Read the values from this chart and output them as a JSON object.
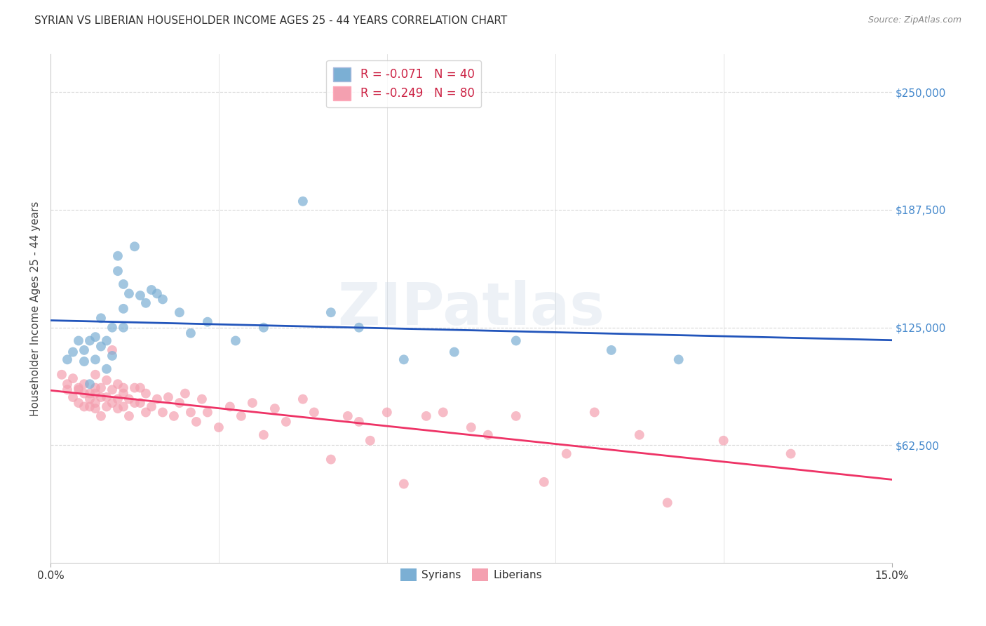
{
  "title": "SYRIAN VS LIBERIAN HOUSEHOLDER INCOME AGES 25 - 44 YEARS CORRELATION CHART",
  "source": "Source: ZipAtlas.com",
  "ylabel": "Householder Income Ages 25 - 44 years",
  "ytick_labels": [
    "$250,000",
    "$187,500",
    "$125,000",
    "$62,500"
  ],
  "ytick_values": [
    250000,
    187500,
    125000,
    62500
  ],
  "ylim": [
    0,
    270000
  ],
  "xlim": [
    0.0,
    0.15
  ],
  "background_color": "#ffffff",
  "grid_color": "#d8d8d8",
  "watermark": "ZIPatlas",
  "legend_syrian_r": "R = -0.071",
  "legend_syrian_n": "N = 40",
  "legend_liberian_r": "R = -0.249",
  "legend_liberian_n": "N = 80",
  "syrian_color": "#7bafd4",
  "liberian_color": "#f4a0b0",
  "syrian_line_color": "#2255bb",
  "liberian_line_color": "#ee3366",
  "marker_size": 100,
  "syrians_x": [
    0.003,
    0.004,
    0.005,
    0.006,
    0.006,
    0.007,
    0.007,
    0.008,
    0.008,
    0.009,
    0.009,
    0.01,
    0.01,
    0.011,
    0.011,
    0.012,
    0.012,
    0.013,
    0.013,
    0.013,
    0.014,
    0.015,
    0.016,
    0.017,
    0.018,
    0.019,
    0.02,
    0.023,
    0.025,
    0.028,
    0.033,
    0.038,
    0.045,
    0.05,
    0.055,
    0.063,
    0.072,
    0.083,
    0.1,
    0.112
  ],
  "syrians_y": [
    108000,
    112000,
    118000,
    107000,
    113000,
    95000,
    118000,
    120000,
    108000,
    115000,
    130000,
    103000,
    118000,
    125000,
    110000,
    155000,
    163000,
    148000,
    135000,
    125000,
    143000,
    168000,
    142000,
    138000,
    145000,
    143000,
    140000,
    133000,
    122000,
    128000,
    118000,
    125000,
    192000,
    133000,
    125000,
    108000,
    112000,
    118000,
    113000,
    108000
  ],
  "liberians_x": [
    0.002,
    0.003,
    0.003,
    0.004,
    0.004,
    0.005,
    0.005,
    0.005,
    0.006,
    0.006,
    0.006,
    0.007,
    0.007,
    0.007,
    0.008,
    0.008,
    0.008,
    0.008,
    0.008,
    0.009,
    0.009,
    0.009,
    0.01,
    0.01,
    0.01,
    0.011,
    0.011,
    0.011,
    0.012,
    0.012,
    0.012,
    0.013,
    0.013,
    0.013,
    0.014,
    0.014,
    0.015,
    0.015,
    0.016,
    0.016,
    0.017,
    0.017,
    0.018,
    0.019,
    0.02,
    0.021,
    0.022,
    0.023,
    0.024,
    0.025,
    0.026,
    0.027,
    0.028,
    0.03,
    0.032,
    0.034,
    0.036,
    0.038,
    0.04,
    0.042,
    0.045,
    0.047,
    0.05,
    0.053,
    0.055,
    0.057,
    0.06,
    0.063,
    0.067,
    0.07,
    0.075,
    0.078,
    0.083,
    0.088,
    0.092,
    0.097,
    0.105,
    0.11,
    0.12,
    0.132
  ],
  "liberians_y": [
    100000,
    95000,
    92000,
    98000,
    88000,
    93000,
    85000,
    92000,
    90000,
    83000,
    95000,
    90000,
    83000,
    87000,
    100000,
    93000,
    85000,
    90000,
    82000,
    88000,
    78000,
    93000,
    97000,
    88000,
    83000,
    92000,
    85000,
    113000,
    95000,
    87000,
    82000,
    90000,
    83000,
    93000,
    78000,
    87000,
    93000,
    85000,
    93000,
    85000,
    80000,
    90000,
    83000,
    87000,
    80000,
    88000,
    78000,
    85000,
    90000,
    80000,
    75000,
    87000,
    80000,
    72000,
    83000,
    78000,
    85000,
    68000,
    82000,
    75000,
    87000,
    80000,
    55000,
    78000,
    75000,
    65000,
    80000,
    42000,
    78000,
    80000,
    72000,
    68000,
    78000,
    43000,
    58000,
    80000,
    68000,
    32000,
    65000,
    58000
  ]
}
